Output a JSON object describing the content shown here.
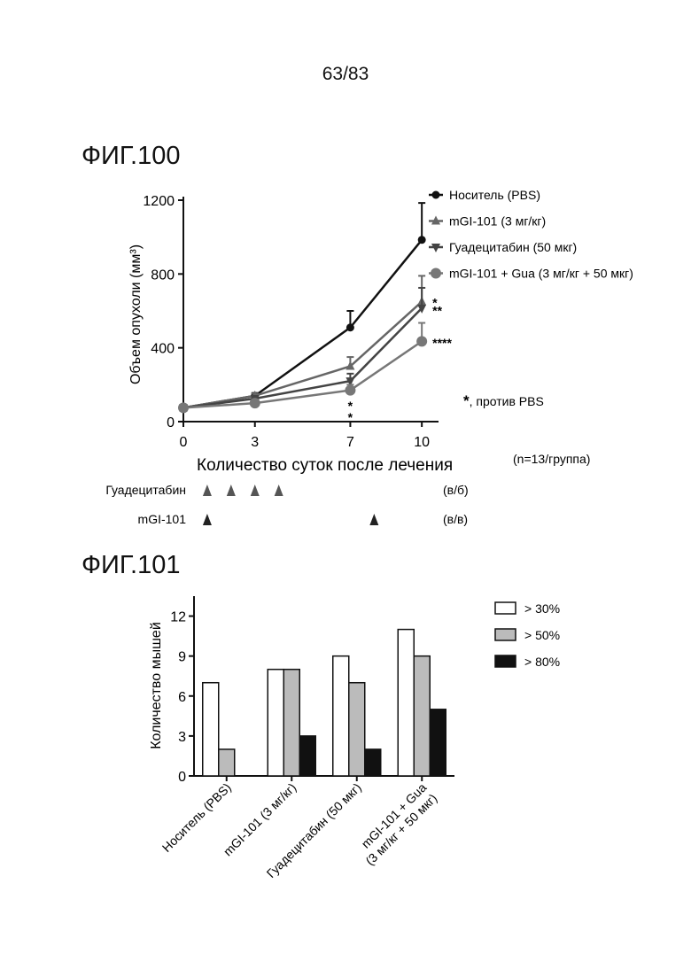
{
  "page": {
    "number": "63/83"
  },
  "figures": [
    {
      "label": "ФИГ.100"
    },
    {
      "label": "ФИГ.101"
    }
  ],
  "annotations": {
    "significance_note_star": "*",
    "significance_note_text": ", против PBS",
    "group_size": "(n=13/группа)",
    "fig100_marks": [
      {
        "text": "*",
        "x": 10,
        "y": 650
      },
      {
        "text": "**",
        "x": 10,
        "y": 608
      },
      {
        "text": "****",
        "x": 10,
        "y": 432
      },
      {
        "text": "*",
        "x": 7,
        "y": 92
      },
      {
        "text": "*",
        "x": 7,
        "y": 30
      }
    ]
  },
  "dosing": {
    "rows": [
      {
        "name": "Гуадецитабин",
        "route": "(в/б)",
        "color": "#555555",
        "days": [
          1,
          2,
          3,
          4
        ]
      },
      {
        "name": "mGI-101",
        "route": "(в/в)",
        "color": "#222222",
        "days": [
          1,
          8
        ]
      }
    ]
  },
  "chart_data": [
    {
      "type": "line",
      "title": "",
      "xlabel": "Количество суток после лечения",
      "ylabel": "Объем опухоли (мм³)",
      "x": [
        0,
        3,
        7,
        10
      ],
      "xticks": [
        "0",
        "3",
        "7",
        "10"
      ],
      "yticks": [
        "0",
        "400",
        "800",
        "1200"
      ],
      "xlim": [
        0,
        10.7
      ],
      "ylim": [
        0,
        1200
      ],
      "grid": false,
      "legend_position": "top-right",
      "series": [
        {
          "name": "Носитель (PBS)",
          "marker": "circle",
          "color": "#111111",
          "values": [
            75,
            140,
            510,
            985
          ],
          "errors": [
            0,
            15,
            90,
            200
          ]
        },
        {
          "name": "mGI-101 (3 мг/кг)",
          "marker": "triangle-up",
          "color": "#666666",
          "values": [
            75,
            140,
            300,
            650
          ],
          "errors": [
            0,
            12,
            50,
            140
          ]
        },
        {
          "name": "Гуадецитабин (50 мкг)",
          "marker": "triangle-down",
          "color": "#444444",
          "values": [
            75,
            125,
            220,
            615
          ],
          "errors": [
            0,
            12,
            40,
            110
          ]
        },
        {
          "name": "mGI-101 + Gua (3 мг/кг + 50 мкг)",
          "marker": "big-circle",
          "color": "#777777",
          "values": [
            75,
            100,
            170,
            435
          ],
          "errors": [
            0,
            10,
            30,
            100
          ]
        }
      ]
    },
    {
      "type": "bar",
      "title": "",
      "xlabel": "",
      "ylabel": "Количество мышей",
      "categories": [
        "Носитель (PBS)",
        "mGI-101 (3 мг/кг)",
        "Гуадецитабин (50 мкг)",
        "mGI-101 + Gua|(3 мг/кг + 50 мкг)"
      ],
      "yticks": [
        "0",
        "3",
        "6",
        "9",
        "12"
      ],
      "ylim": [
        0,
        13.5
      ],
      "grid": false,
      "legend_position": "top-right",
      "series": [
        {
          "name": "> 30%",
          "color": "#ffffff",
          "values": [
            7,
            8,
            9,
            11
          ]
        },
        {
          "name": "> 50%",
          "color": "#bbbbbb",
          "values": [
            2,
            8,
            7,
            9
          ]
        },
        {
          "name": "> 80%",
          "color": "#111111",
          "values": [
            0,
            3,
            2,
            5
          ]
        }
      ]
    }
  ]
}
